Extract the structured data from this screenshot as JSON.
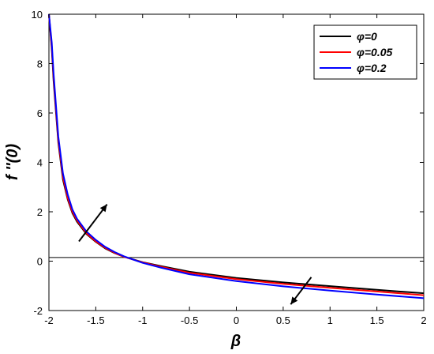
{
  "chart_data": {
    "type": "line",
    "xlabel": "β",
    "ylabel": "f ''(0)",
    "xlim": [
      -2,
      2
    ],
    "ylim": [
      -2,
      10
    ],
    "x_ticks": [
      -2,
      -1.5,
      -1,
      -0.5,
      0,
      0.5,
      1,
      1.5,
      2
    ],
    "y_ticks": [
      -2,
      0,
      2,
      4,
      6,
      8,
      10
    ],
    "x_tick_labels": [
      "-2",
      "-1.5",
      "-1",
      "-0.5",
      "0",
      "0.5",
      "1",
      "1.5",
      "2"
    ],
    "y_tick_labels": [
      "-2",
      "0",
      "2",
      "4",
      "6",
      "8",
      "10"
    ],
    "grid": false,
    "legend_position": "top-right",
    "reference_line_y": 0.15,
    "series": [
      {
        "name": "φ=0",
        "color": "#000000",
        "x": [
          -2,
          -1.97,
          -1.95,
          -1.9,
          -1.85,
          -1.8,
          -1.75,
          -1.7,
          -1.6,
          -1.5,
          -1.4,
          -1.3,
          -1.2,
          -1.1,
          -1.0,
          -0.8,
          -0.5,
          0,
          0.5,
          1,
          1.5,
          2
        ],
        "y": [
          10,
          8.6,
          7.3,
          4.8,
          3.3,
          2.5,
          1.95,
          1.6,
          1.1,
          0.78,
          0.52,
          0.33,
          0.18,
          0.07,
          -0.04,
          -0.2,
          -0.43,
          -0.68,
          -0.86,
          -1.01,
          -1.16,
          -1.3
        ]
      },
      {
        "name": "φ=0.05",
        "color": "#ff0000",
        "x": [
          -2,
          -1.97,
          -1.95,
          -1.9,
          -1.85,
          -1.8,
          -1.75,
          -1.7,
          -1.6,
          -1.5,
          -1.4,
          -1.3,
          -1.2,
          -1.1,
          -1.0,
          -0.8,
          -0.5,
          0,
          0.5,
          1,
          1.5,
          2
        ],
        "y": [
          10,
          8.7,
          7.45,
          4.9,
          3.4,
          2.55,
          2.0,
          1.65,
          1.13,
          0.8,
          0.54,
          0.34,
          0.18,
          0.06,
          -0.05,
          -0.23,
          -0.47,
          -0.73,
          -0.92,
          -1.08,
          -1.23,
          -1.38
        ]
      },
      {
        "name": "φ=0.2",
        "color": "#0000ff",
        "x": [
          -2,
          -1.97,
          -1.95,
          -1.9,
          -1.85,
          -1.8,
          -1.75,
          -1.7,
          -1.6,
          -1.5,
          -1.4,
          -1.3,
          -1.2,
          -1.1,
          -1.0,
          -0.8,
          -0.5,
          0,
          0.5,
          1,
          1.5,
          2
        ],
        "y": [
          10,
          8.85,
          7.6,
          5.05,
          3.55,
          2.7,
          2.1,
          1.72,
          1.2,
          0.86,
          0.58,
          0.37,
          0.2,
          0.06,
          -0.07,
          -0.27,
          -0.53,
          -0.81,
          -1.02,
          -1.19,
          -1.35,
          -1.5
        ]
      }
    ],
    "arrows": [
      {
        "from": [
          -1.68,
          0.8
        ],
        "to": [
          -1.38,
          2.3
        ]
      },
      {
        "from": [
          0.8,
          -0.65
        ],
        "to": [
          0.58,
          -1.75
        ]
      }
    ]
  }
}
